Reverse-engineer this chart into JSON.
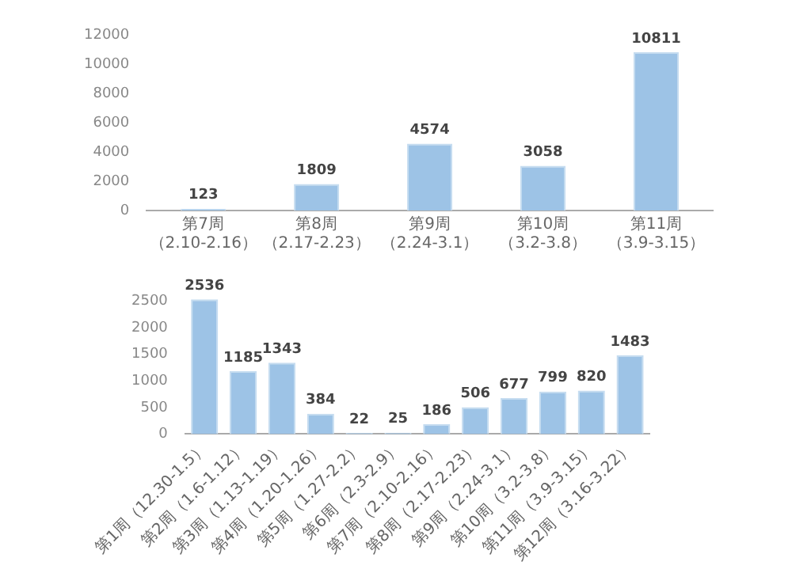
{
  "chart_data": [
    {
      "type": "bar",
      "categories": [
        "第7周（2.10-2.16）",
        "第8周（2.17-2.23）",
        "第9周（2.24-3.1）",
        "第10周（3.2-3.8）",
        "第11周（3.9-3.15）"
      ],
      "values": [
        123,
        1809,
        4574,
        3058,
        10811
      ],
      "color": "#9dc3e6",
      "ylim": [
        0,
        12000
      ],
      "yticks": [
        0,
        2000,
        4000,
        6000,
        8000,
        10000,
        12000
      ],
      "grid": false,
      "data_labels": true
    },
    {
      "type": "bar",
      "categories": [
        "第1周（12.30-1.5）",
        "第2周（1.6-1.12）",
        "第3周（1.13-1.19）",
        "第4周（1.20-1.26）",
        "第5周（1.27-2.2）",
        "第6周（2.3-2.9）",
        "第7周（2.10-2.16）",
        "第8周（2.17-2.23）",
        "第9周（2.24-3.1）",
        "第10周（3.2-3.8）",
        "第11周（3.9-3.15）",
        "第12周（3.16-3.22）"
      ],
      "values": [
        2536,
        1185,
        1343,
        384,
        22,
        25,
        186,
        506,
        677,
        799,
        820,
        1483
      ],
      "color": "#9dc3e6",
      "ylim": [
        0,
        2600
      ],
      "yticks": [
        0,
        500,
        1000,
        1500,
        2000,
        2500
      ],
      "grid": false,
      "data_labels": true
    }
  ]
}
